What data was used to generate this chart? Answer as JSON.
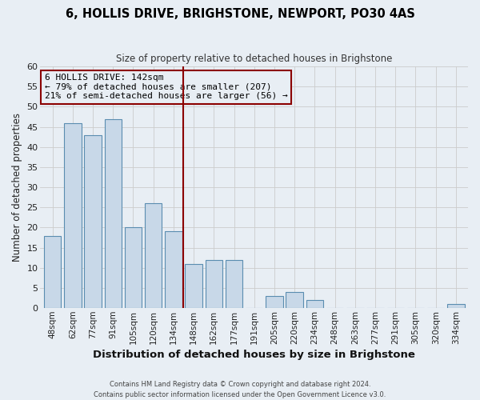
{
  "title": "6, HOLLIS DRIVE, BRIGHSTONE, NEWPORT, PO30 4AS",
  "subtitle": "Size of property relative to detached houses in Brighstone",
  "xlabel": "Distribution of detached houses by size in Brighstone",
  "ylabel": "Number of detached properties",
  "bar_labels": [
    "48sqm",
    "62sqm",
    "77sqm",
    "91sqm",
    "105sqm",
    "120sqm",
    "134sqm",
    "148sqm",
    "162sqm",
    "177sqm",
    "191sqm",
    "205sqm",
    "220sqm",
    "234sqm",
    "248sqm",
    "263sqm",
    "277sqm",
    "291sqm",
    "305sqm",
    "320sqm",
    "334sqm"
  ],
  "bar_values": [
    18,
    46,
    43,
    47,
    20,
    26,
    19,
    11,
    12,
    12,
    0,
    3,
    4,
    2,
    0,
    0,
    0,
    0,
    0,
    0,
    1
  ],
  "bar_color": "#c8d8e8",
  "bar_edge_color": "#5a8db0",
  "vline_x_index": 7.0,
  "vline_color": "#8b0000",
  "annotation_line1": "6 HOLLIS DRIVE: 142sqm",
  "annotation_line2": "← 79% of detached houses are smaller (207)",
  "annotation_line3": "21% of semi-detached houses are larger (56) →",
  "annotation_box_color": "#8b0000",
  "annotation_text_color": "#000000",
  "ylim": [
    0,
    60
  ],
  "yticks": [
    0,
    5,
    10,
    15,
    20,
    25,
    30,
    35,
    40,
    45,
    50,
    55,
    60
  ],
  "grid_color": "#cccccc",
  "background_color": "#e8eef4",
  "footer_line1": "Contains HM Land Registry data © Crown copyright and database right 2024.",
  "footer_line2": "Contains public sector information licensed under the Open Government Licence v3.0."
}
